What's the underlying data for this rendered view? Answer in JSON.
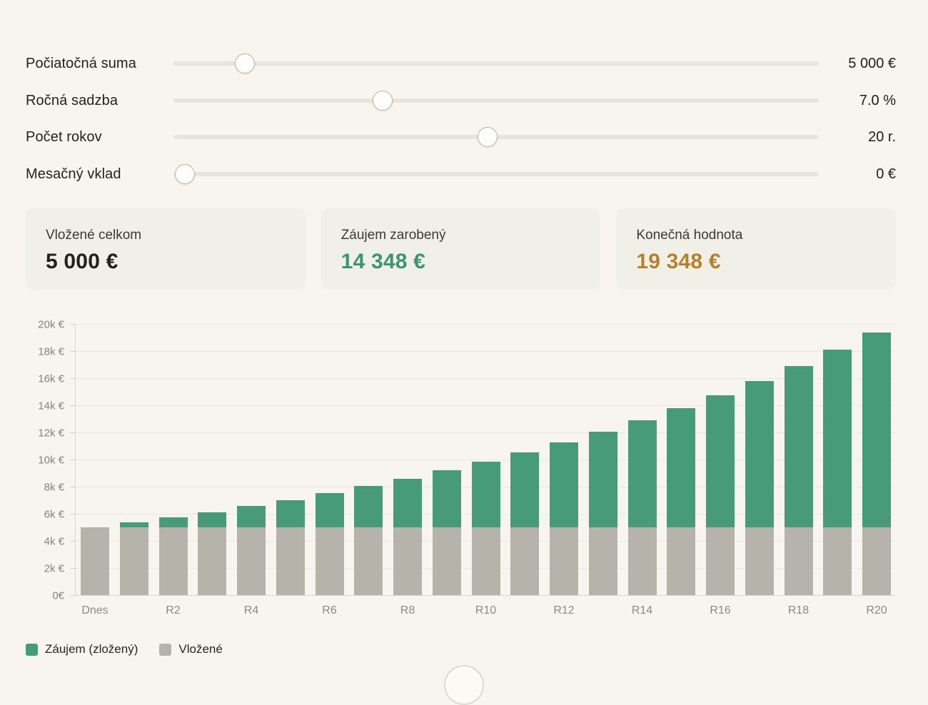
{
  "controls": [
    {
      "id": "initial-sum",
      "label": "Počiatočná suma",
      "value": "5 000 €",
      "percent": 11.1
    },
    {
      "id": "annual-rate",
      "label": "Ročná sadzba",
      "value": "7.0 %",
      "percent": 32.4
    },
    {
      "id": "years",
      "label": "Počet rokov",
      "value": "20 r.",
      "percent": 48.7
    },
    {
      "id": "monthly-deposit",
      "label": "Mesačný vklad",
      "value": "0 €",
      "percent": 1.8
    }
  ],
  "cards": [
    {
      "id": "total-invested",
      "label": "Vložené celkom",
      "value": "5 000 €",
      "value_color": "#22211b"
    },
    {
      "id": "interest-earned",
      "label": "Záujem zarobený",
      "value": "14 348 €",
      "value_color": "#3c9472"
    },
    {
      "id": "final-value",
      "label": "Konečná hodnota",
      "value": "19 348 €",
      "value_color": "#b5812d"
    }
  ],
  "chart_data": {
    "type": "bar",
    "stacked": true,
    "categories": [
      "Dnes",
      "R1",
      "R2",
      "R3",
      "R4",
      "R5",
      "R6",
      "R7",
      "R8",
      "R9",
      "R10",
      "R11",
      "R12",
      "R13",
      "R14",
      "R15",
      "R16",
      "R17",
      "R18",
      "R19",
      "R20"
    ],
    "x_tick_labels": [
      "Dnes",
      "R2",
      "R4",
      "R6",
      "R8",
      "R10",
      "R12",
      "R14",
      "R16",
      "R18",
      "R20"
    ],
    "x_tick_every": 2,
    "y_ticks": [
      "0€",
      "2k €",
      "4k €",
      "6k €",
      "8k €",
      "10k €",
      "12k €",
      "14k €",
      "16k €",
      "18k €",
      "20k €"
    ],
    "ylim": [
      0,
      20000
    ],
    "grid": "horizontal",
    "series": [
      {
        "name": "Vložené",
        "color": "#b5b3aa",
        "values": [
          5000,
          5000,
          5000,
          5000,
          5000,
          5000,
          5000,
          5000,
          5000,
          5000,
          5000,
          5000,
          5000,
          5000,
          5000,
          5000,
          5000,
          5000,
          5000,
          5000,
          5000
        ]
      },
      {
        "name": "Záujem (zložený)",
        "color": "#479c77",
        "values": [
          0,
          350,
          725,
          1125,
          1554,
          2013,
          2504,
          3029,
          3591,
          4192,
          4836,
          5524,
          6261,
          7049,
          7893,
          8795,
          9761,
          10794,
          11900,
          13083,
          14348
        ]
      }
    ],
    "totals": [
      5000,
      5350,
      5725,
      6125,
      6554,
      7013,
      7504,
      8029,
      8591,
      9192,
      9836,
      10524,
      11261,
      12049,
      12893,
      13795,
      14761,
      15794,
      16900,
      18083,
      19348
    ],
    "legend": [
      {
        "label": "Záujem (zložený)",
        "color": "#479c77"
      },
      {
        "label": "Vložené",
        "color": "#b5b3aa"
      }
    ],
    "legend_position": "bottom-left"
  }
}
